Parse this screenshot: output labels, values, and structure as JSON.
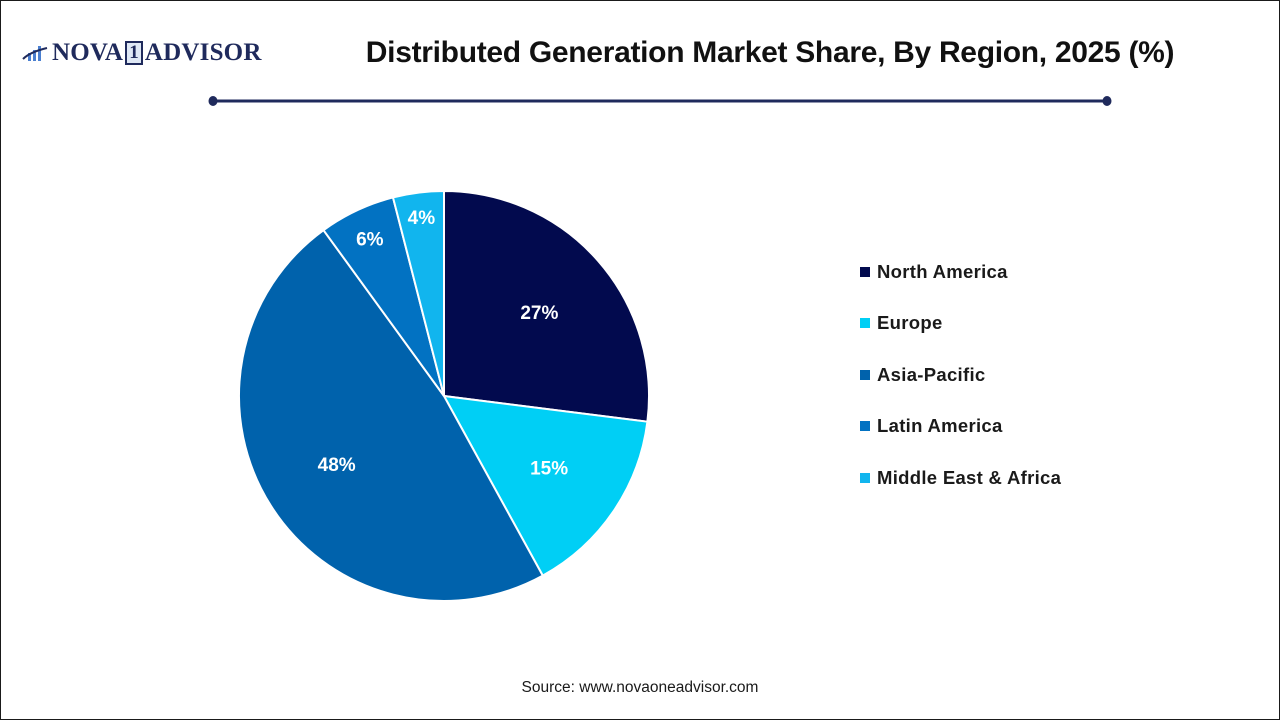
{
  "header": {
    "logo": {
      "text_before": "NOVA",
      "text_box": "1",
      "text_after": "ADVISOR",
      "icon": "bar-chart-swoosh-icon"
    },
    "title": "Distributed Generation Market Share, By Region, 2025 (%)"
  },
  "colors": {
    "north_america": "#020A4E",
    "europe": "#00CFF5",
    "asia_pacific": "#0062AC",
    "latin_america": "#0272C2",
    "middle_east_africa": "#11B5EE",
    "title_rule": "#1F2A5C"
  },
  "legend": {
    "items": [
      {
        "label": "North America",
        "color": "#020A4E"
      },
      {
        "label": "Europe",
        "color": "#00CFF5"
      },
      {
        "label": "Asia-Pacific",
        "color": "#0062AC"
      },
      {
        "label": "Latin America",
        "color": "#0272C2"
      },
      {
        "label": "Middle East & Africa",
        "color": "#11B5EE"
      }
    ]
  },
  "slice_labels": [
    "27%",
    "15%",
    "48%",
    "6%",
    "4%"
  ],
  "footer": {
    "source": "Source: www.novaoneadvisor.com"
  },
  "chart_data": {
    "type": "pie",
    "title": "Distributed Generation Market Share, By Region, 2025 (%)",
    "categories": [
      "North America",
      "Europe",
      "Asia-Pacific",
      "Latin America",
      "Middle East & Africa"
    ],
    "values": [
      27,
      15,
      48,
      6,
      4
    ],
    "unit": "%",
    "start_angle": "12 o'clock, clockwise",
    "colors": [
      "#020A4E",
      "#00CFF5",
      "#0062AC",
      "#0272C2",
      "#11B5EE"
    ],
    "legend_position": "right",
    "data_labels": [
      "27%",
      "15%",
      "48%",
      "6%",
      "4%"
    ],
    "source": "Source: www.novaoneadvisor.com"
  }
}
